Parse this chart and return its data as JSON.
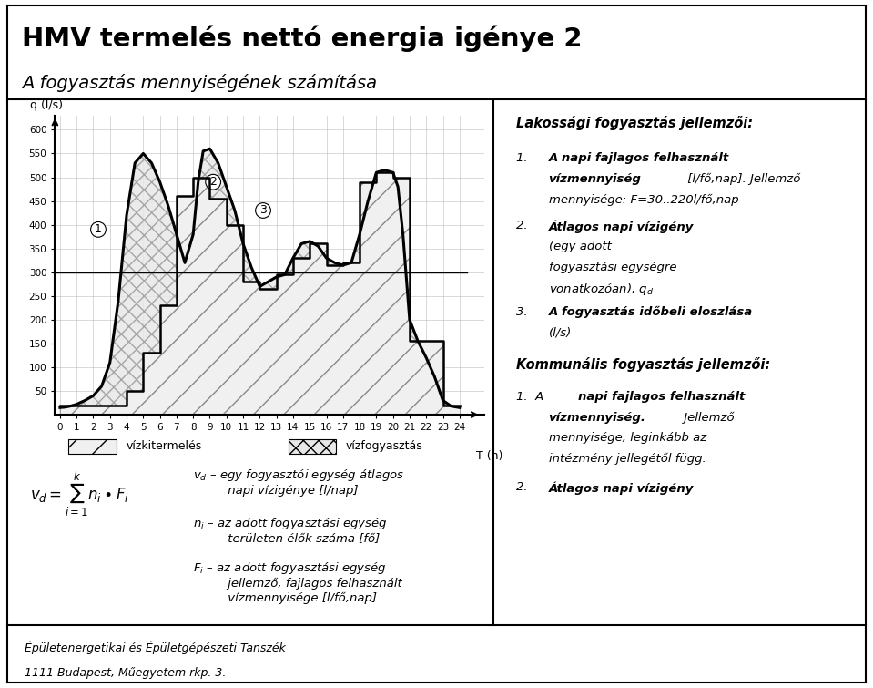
{
  "title_line1": "HMV termelés nettó energia igénye 2",
  "title_line2": "A fogyasztás mennyiségének számítása",
  "ylabel": "q (l/s)",
  "xlabel": "T (h)",
  "yticks": [
    50,
    100,
    150,
    200,
    250,
    300,
    350,
    400,
    450,
    500,
    550,
    600
  ],
  "xticks": [
    0,
    1,
    2,
    3,
    4,
    5,
    6,
    7,
    8,
    9,
    10,
    11,
    12,
    13,
    14,
    15,
    16,
    17,
    18,
    19,
    20,
    21,
    22,
    23,
    24
  ],
  "ylim": [
    0,
    630
  ],
  "xlim": [
    -0.3,
    25.5
  ],
  "step_hours": [
    0,
    1,
    2,
    3,
    4,
    5,
    6,
    7,
    8,
    9,
    10,
    11,
    12,
    13,
    14,
    15,
    16,
    17,
    18,
    19,
    20,
    21,
    22,
    23,
    24
  ],
  "step_values": [
    20,
    20,
    20,
    20,
    50,
    130,
    230,
    460,
    500,
    455,
    400,
    280,
    265,
    295,
    330,
    360,
    315,
    320,
    490,
    510,
    500,
    155,
    155,
    20,
    20
  ],
  "curve_x": [
    0,
    0.3,
    0.6,
    1.0,
    1.5,
    2.0,
    2.5,
    3.0,
    3.5,
    4.0,
    4.5,
    5.0,
    5.5,
    6.0,
    6.5,
    7.0,
    7.5,
    8.0,
    8.3,
    8.6,
    9.0,
    9.5,
    10.0,
    10.5,
    11.0,
    11.5,
    12.0,
    12.5,
    13.0,
    13.5,
    14.0,
    14.5,
    15.0,
    15.5,
    16.0,
    16.5,
    17.0,
    17.5,
    18.0,
    18.5,
    19.0,
    19.5,
    20.0,
    20.3,
    20.6,
    21.0,
    21.5,
    22.0,
    22.5,
    23.0,
    23.5,
    24.0
  ],
  "curve_y": [
    15,
    16,
    18,
    22,
    30,
    40,
    60,
    110,
    240,
    420,
    530,
    550,
    530,
    490,
    440,
    380,
    320,
    380,
    490,
    555,
    560,
    530,
    480,
    430,
    360,
    310,
    270,
    280,
    290,
    295,
    330,
    360,
    365,
    355,
    330,
    320,
    315,
    320,
    380,
    450,
    510,
    515,
    510,
    480,
    380,
    200,
    155,
    120,
    80,
    30,
    18,
    15
  ],
  "constant_line_y": 300,
  "footer_line1": "Épületenergetikai és Épületgépészeti Tanszék",
  "footer_line2": "1111 Budapest, Műegyetem rkp. 3."
}
